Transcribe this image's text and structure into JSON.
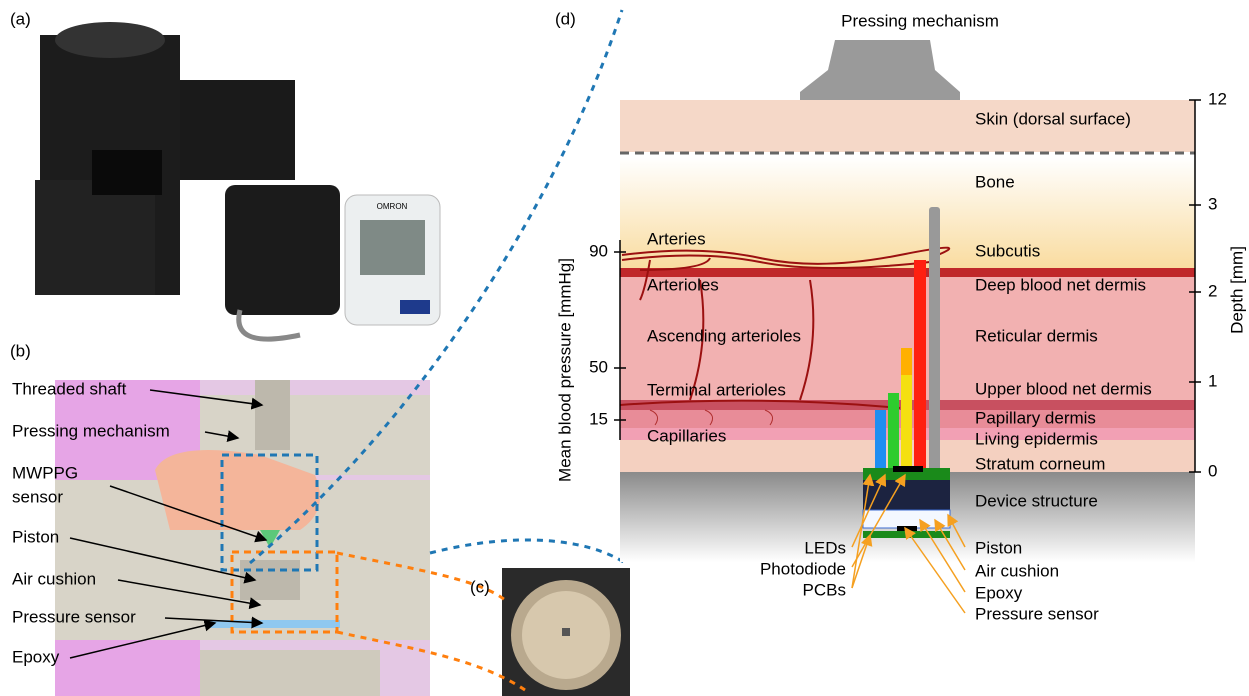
{
  "panels": {
    "a": "(a)",
    "b": "(b)",
    "c": "(c)",
    "d": "(d)"
  },
  "a": {
    "brand": "OMRON"
  },
  "b_labels": [
    "Threaded shaft",
    "Pressing mechanism",
    "MWPPG",
    "sensor",
    "Piston",
    "Air cushion",
    "Pressure sensor",
    "Epoxy"
  ],
  "d": {
    "title": "Pressing mechanism",
    "layers": [
      "Skin (dorsal surface)",
      "Bone",
      "Subcutis",
      "Deep blood net dermis",
      "Reticular dermis",
      "Upper blood net dermis",
      "Papillary dermis",
      "Living epidermis",
      "Stratum corneum",
      "Device structure"
    ],
    "vessels": [
      "Arteries",
      "Arterioles",
      "Ascending arterioles",
      "Terminal arterioles",
      "Capillaries"
    ],
    "left_axis": {
      "label": "Mean blood pressure [mmHg]",
      "ticks": [
        90,
        50,
        15
      ]
    },
    "right_axis": {
      "label": "Depth [mm]",
      "ticks": [
        12,
        3,
        2,
        1,
        0
      ]
    },
    "device_left": [
      "LEDs",
      "Photodiode",
      "PCBs"
    ],
    "device_right": [
      "Piston",
      "Air cushion",
      "Epoxy",
      "Pressure sensor"
    ]
  }
}
